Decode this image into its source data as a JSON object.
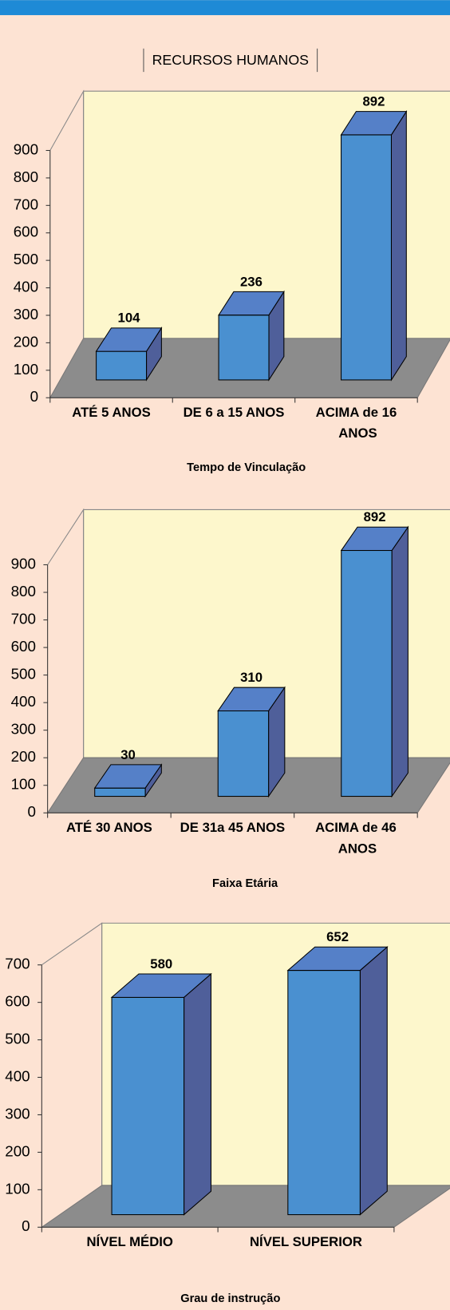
{
  "header": {
    "title": "RECURSOS HUMANOS"
  },
  "chart_data": [
    {
      "type": "bar",
      "xlabel": "Tempo de Vinculação",
      "categories": [
        "ATÉ 5 ANOS",
        "DE 6 a 15 ANOS",
        "ACIMA de 16 ANOS"
      ],
      "values": [
        104,
        236,
        892
      ],
      "color": "#4a90d0",
      "ylim": [
        0,
        900
      ],
      "yticks": [
        0,
        100,
        200,
        300,
        400,
        500,
        600,
        700,
        800,
        900
      ],
      "grid": false
    },
    {
      "type": "bar",
      "xlabel": "Faixa Etária",
      "categories": [
        "ATÉ 30 ANOS",
        "DE 31a 45 ANOS",
        "ACIMA de 46 ANOS"
      ],
      "values": [
        30,
        310,
        892
      ],
      "color": "#4a90d0",
      "ylim": [
        0,
        900
      ],
      "yticks": [
        0,
        100,
        200,
        300,
        400,
        500,
        600,
        700,
        800,
        900
      ],
      "grid": false
    },
    {
      "type": "bar",
      "xlabel": "Grau de instrução",
      "categories": [
        "NÍVEL MÉDIO",
        "NÍVEL SUPERIOR"
      ],
      "values": [
        580,
        652
      ],
      "color": "#4a90d0",
      "ylim": [
        0,
        700
      ],
      "yticks": [
        0,
        100,
        200,
        300,
        400,
        500,
        600,
        700
      ],
      "grid": false
    }
  ]
}
